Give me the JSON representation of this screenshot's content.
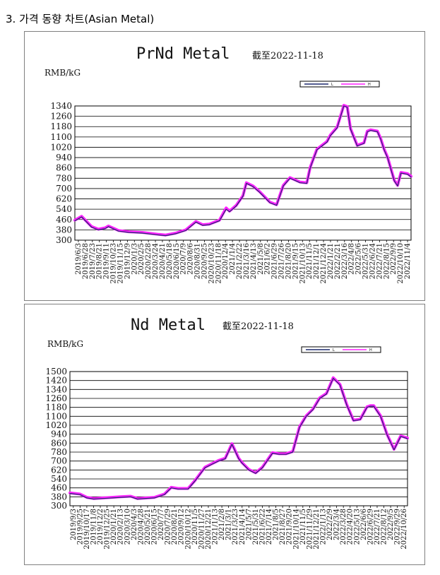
{
  "heading": "3. 가격 동향 차트(Asian Metal)",
  "colors": {
    "low": "#1f2a6e",
    "high": "#ff22ff",
    "grid": "#000000"
  },
  "chart_data": [
    {
      "type": "line",
      "title": "PrNd Metal",
      "subtitle": "截至2022-11-18",
      "ylabel": "RMB/kG",
      "ylim": [
        300,
        1340
      ],
      "yticks": [
        1340,
        1260,
        1180,
        1100,
        1020,
        940,
        860,
        780,
        700,
        620,
        540,
        460,
        380,
        300
      ],
      "legend": {
        "placement": "top-right",
        "entries": [
          "L",
          "H"
        ]
      },
      "x_labels": [
        "2019/6/3",
        "2019/6/28",
        "2019/7/23",
        "2019/8/21",
        "2019/9/11",
        "2019/10/23",
        "2019/11/15",
        "2019/12/9",
        "2020/1/3",
        "2020/2/5",
        "2020/2/28",
        "2020/3/24",
        "2020/4/21",
        "2020/5/18",
        "2020/6/15",
        "2020/7/9",
        "2020/8/6",
        "2020/8/31",
        "2020/9/25",
        "2020/10/23",
        "2020/11/18",
        "2020/12/4",
        "2021/1/4",
        "2021/2/22",
        "2021/3/16",
        "2021/4/13",
        "2021/5/8",
        "2021/6/2",
        "2021/6/29",
        "2021/7/26",
        "2021/8/20",
        "2021/9/15",
        "2021/10/13",
        "2021/11/5",
        "2021/12/1",
        "2021/12/24",
        "2022/1/21",
        "2022/2/21",
        "2022/3/16",
        "2022/4/8",
        "2022/5/6",
        "2022/5/31",
        "2022/6/24",
        "2022/7/21",
        "2022/8/15",
        "2022/9/9",
        "2022/10/10",
        "2022/11/4"
      ],
      "series": [
        {
          "name": "L",
          "x": [
            0,
            0.02,
            0.05,
            0.07,
            0.09,
            0.1,
            0.13,
            0.16,
            0.2,
            0.25,
            0.27,
            0.3,
            0.33,
            0.36,
            0.38,
            0.4,
            0.43,
            0.45,
            0.46,
            0.48,
            0.5,
            0.51,
            0.53,
            0.55,
            0.58,
            0.6,
            0.62,
            0.64,
            0.67,
            0.69,
            0.7,
            0.72,
            0.75,
            0.76,
            0.78,
            0.8,
            0.81,
            0.82,
            0.84,
            0.86,
            0.87,
            0.88,
            0.9,
            0.91,
            0.92,
            0.93,
            0.95,
            0.96,
            0.97,
            0.99,
            1.0
          ],
          "values": [
            450,
            480,
            400,
            380,
            390,
            405,
            370,
            360,
            355,
            340,
            335,
            350,
            375,
            440,
            415,
            420,
            450,
            540,
            520,
            565,
            640,
            740,
            715,
            670,
            590,
            570,
            720,
            780,
            745,
            740,
            860,
            1000,
            1060,
            1110,
            1170,
            1340,
            1330,
            1160,
            1030,
            1050,
            1140,
            1150,
            1140,
            1080,
            1000,
            940,
            760,
            720,
            820,
            810,
            790
          ]
        },
        {
          "name": "H",
          "x": [
            0,
            0.02,
            0.05,
            0.07,
            0.09,
            0.1,
            0.13,
            0.16,
            0.2,
            0.25,
            0.27,
            0.3,
            0.33,
            0.36,
            0.38,
            0.4,
            0.43,
            0.45,
            0.46,
            0.48,
            0.5,
            0.51,
            0.53,
            0.55,
            0.58,
            0.6,
            0.62,
            0.64,
            0.67,
            0.69,
            0.7,
            0.72,
            0.75,
            0.76,
            0.78,
            0.8,
            0.81,
            0.82,
            0.84,
            0.86,
            0.87,
            0.88,
            0.9,
            0.91,
            0.92,
            0.93,
            0.95,
            0.96,
            0.97,
            0.99,
            1.0
          ],
          "values": [
            455,
            485,
            405,
            385,
            395,
            410,
            375,
            365,
            360,
            345,
            340,
            355,
            380,
            445,
            420,
            425,
            455,
            550,
            525,
            570,
            645,
            745,
            720,
            675,
            595,
            575,
            725,
            785,
            750,
            745,
            865,
            1005,
            1065,
            1115,
            1175,
            1345,
            1335,
            1165,
            1035,
            1055,
            1145,
            1155,
            1145,
            1085,
            1005,
            945,
            765,
            725,
            825,
            815,
            795
          ]
        }
      ]
    },
    {
      "type": "line",
      "title": "Nd Metal",
      "subtitle": "截至2022-11-18",
      "ylabel": "RMB/kG",
      "ylim": [
        300,
        1500
      ],
      "yticks": [
        1500,
        1420,
        1340,
        1260,
        1180,
        1100,
        1020,
        940,
        860,
        780,
        700,
        620,
        540,
        460,
        380,
        300
      ],
      "legend": {
        "placement": "top-right",
        "entries": [
          "L",
          "H"
        ]
      },
      "x_labels": [
        "2019/9/3",
        "2019/9/25",
        "2019/10/17",
        "2019/11/8",
        "2019/12/2",
        "2019/12/25",
        "2020/1/21",
        "2020/2/13",
        "2020/3/10",
        "2020/4/3",
        "2020/4/28",
        "2020/5/21",
        "2020/6/15",
        "2020/7/7",
        "2020/7/29",
        "2020/8/21",
        "2020/9/12",
        "2020/10/12",
        "2020/11/5",
        "2020/11/27",
        "2020/12/21",
        "2021/1/13",
        "2021/2/8",
        "2021/3/1",
        "2021/3/23",
        "2021/4/14",
        "2021/5/7",
        "2021/5/31",
        "2021/6/22",
        "2021/7/14",
        "2021/8/5",
        "2021/8/27",
        "2021/9/20",
        "2021/10/14",
        "2021/11/5",
        "2021/11/29",
        "2021/12/21",
        "2022/1/13",
        "2022/2/9",
        "2022/3/4",
        "2022/3/28",
        "2022/4/20",
        "2022/5/13",
        "2022/6/6",
        "2022/6/29",
        "2022/7/21",
        "2022/8/12",
        "2022/9/5",
        "2022/9/29",
        "2022/10/26"
      ],
      "series": [
        {
          "name": "L",
          "x": [
            0,
            0.03,
            0.05,
            0.07,
            0.1,
            0.15,
            0.18,
            0.2,
            0.25,
            0.28,
            0.3,
            0.32,
            0.35,
            0.37,
            0.4,
            0.42,
            0.44,
            0.46,
            0.48,
            0.5,
            0.51,
            0.53,
            0.55,
            0.57,
            0.6,
            0.62,
            0.64,
            0.66,
            0.68,
            0.7,
            0.72,
            0.74,
            0.76,
            0.78,
            0.8,
            0.82,
            0.84,
            0.86,
            0.88,
            0.89,
            0.9,
            0.92,
            0.94,
            0.96,
            0.98,
            1.0
          ],
          "values": [
            410,
            400,
            370,
            360,
            365,
            375,
            380,
            360,
            370,
            400,
            460,
            450,
            450,
            520,
            640,
            670,
            700,
            720,
            850,
            720,
            680,
            620,
            590,
            640,
            770,
            760,
            760,
            780,
            1000,
            1100,
            1160,
            1260,
            1300,
            1440,
            1380,
            1200,
            1060,
            1070,
            1180,
            1190,
            1190,
            1100,
            930,
            800,
            920,
            900
          ]
        },
        {
          "name": "H",
          "x": [
            0,
            0.03,
            0.05,
            0.07,
            0.1,
            0.15,
            0.18,
            0.2,
            0.25,
            0.28,
            0.3,
            0.32,
            0.35,
            0.37,
            0.4,
            0.42,
            0.44,
            0.46,
            0.48,
            0.5,
            0.51,
            0.53,
            0.55,
            0.57,
            0.6,
            0.62,
            0.64,
            0.66,
            0.68,
            0.7,
            0.72,
            0.74,
            0.76,
            0.78,
            0.8,
            0.82,
            0.84,
            0.86,
            0.88,
            0.89,
            0.9,
            0.92,
            0.94,
            0.96,
            0.98,
            1.0
          ],
          "values": [
            415,
            405,
            375,
            365,
            370,
            380,
            385,
            365,
            375,
            405,
            465,
            455,
            455,
            525,
            645,
            675,
            705,
            725,
            855,
            725,
            685,
            625,
            595,
            645,
            775,
            765,
            765,
            785,
            1005,
            1105,
            1165,
            1265,
            1305,
            1445,
            1385,
            1205,
            1065,
            1075,
            1185,
            1195,
            1195,
            1105,
            935,
            805,
            925,
            905
          ]
        }
      ]
    }
  ]
}
